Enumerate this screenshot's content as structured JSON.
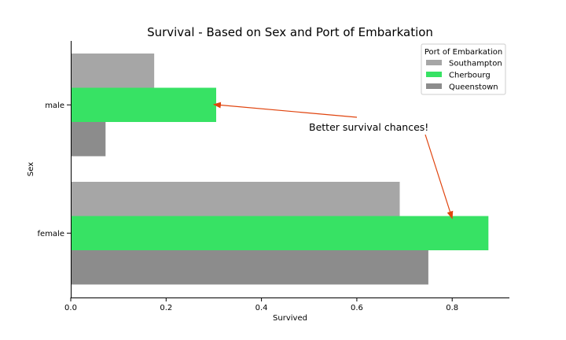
{
  "chart_data": {
    "type": "bar",
    "orientation": "horizontal",
    "title": "Survival - Based on Sex and Port of Embarkation",
    "xlabel": "Survived",
    "ylabel": "Sex",
    "categories": [
      "male",
      "female"
    ],
    "series": [
      {
        "name": "Southampton",
        "values": [
          0.175,
          0.69
        ],
        "color": "#a6a6a6"
      },
      {
        "name": "Cherbourg",
        "values": [
          0.305,
          0.876
        ],
        "color": "#37e264"
      },
      {
        "name": "Queenstown",
        "values": [
          0.073,
          0.75
        ],
        "color": "#8c8c8c"
      }
    ],
    "xlim": [
      0,
      0.92
    ],
    "xticks": [
      "0.0",
      "0.2",
      "0.4",
      "0.6",
      "0.8"
    ],
    "grid": false,
    "legend": {
      "title": "Port of Embarkation",
      "position": "top-right"
    },
    "annotation": {
      "text": "Better survival chances!",
      "color": "#e0440e",
      "targets": [
        {
          "category": "male",
          "series": "Cherbourg",
          "x": 0.3
        },
        {
          "category": "female",
          "series": "Cherbourg",
          "x": 0.8
        }
      ]
    }
  }
}
